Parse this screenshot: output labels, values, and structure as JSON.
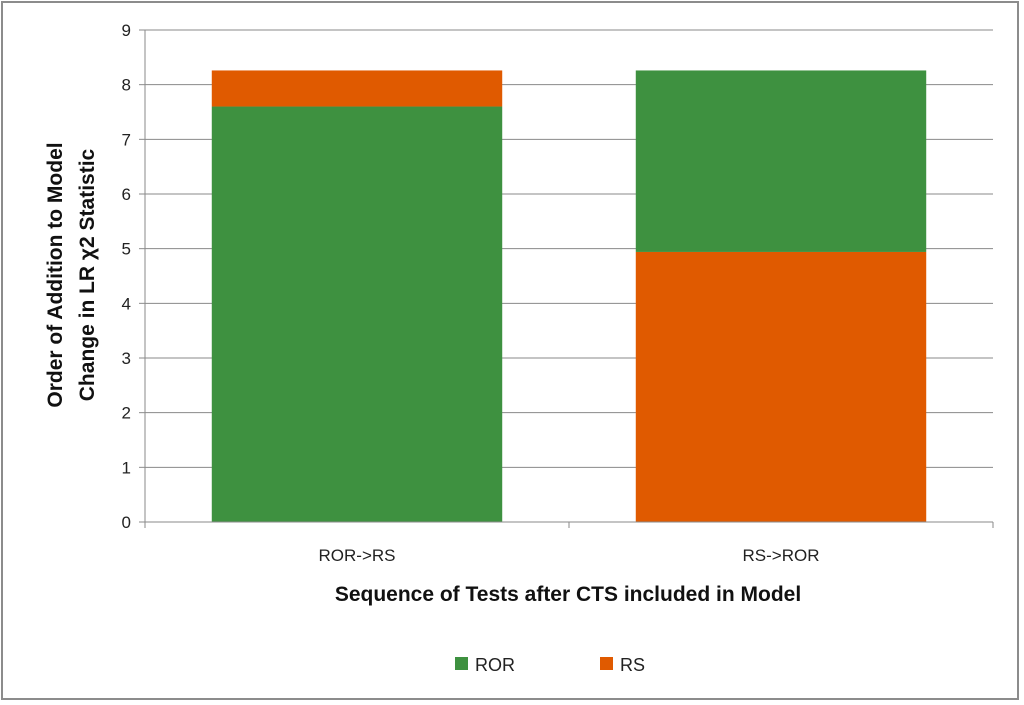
{
  "chart_data": {
    "type": "bar",
    "stacked": true,
    "categories": [
      "ROR->RS",
      "RS->ROR"
    ],
    "series": [
      {
        "name": "ROR",
        "color": "#3e9140",
        "values": [
          7.6,
          3.32
        ]
      },
      {
        "name": "RS",
        "color": "#e05a00",
        "values": [
          0.66,
          4.94
        ]
      }
    ],
    "stack_order": [
      [
        "ROR",
        "RS"
      ],
      [
        "RS",
        "ROR"
      ]
    ],
    "xlabel": "Sequence of Tests after CTS included in Model",
    "ylabel": [
      "Order of Addition to Model",
      "Change in LR χ2 Statistic"
    ],
    "ylim": [
      0,
      9
    ],
    "yticks": [
      0,
      1,
      2,
      3,
      4,
      5,
      6,
      7,
      8,
      9
    ],
    "grid": true,
    "legend": "bottom"
  }
}
